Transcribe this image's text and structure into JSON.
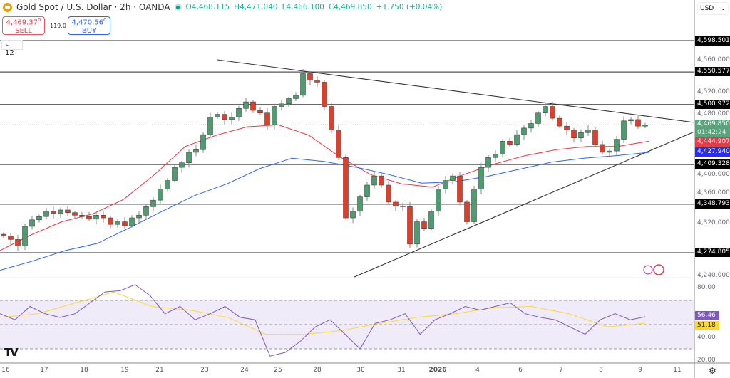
{
  "header": {
    "title": "Gold Spot / U.S. Dollar · 2h · OANDA",
    "open": "O4,468.115",
    "high": "H4,471.040",
    "low": "L4,466.100",
    "close": "C4,469.850",
    "change": "+1.750 (+0.04%)",
    "market_status": "open"
  },
  "trade": {
    "sell_price": "4,469.37",
    "sell_sup": "0",
    "sell_label": "SELL",
    "spread": "119.0",
    "buy_price": "4,470.56",
    "buy_sup": "0",
    "buy_label": "BUY"
  },
  "indicator_collapse": "12",
  "currency": "USD",
  "price_axis": {
    "ticks": [
      "4,560.000",
      "4,520.000",
      "4,480.000",
      "4,400.000",
      "4,360.000",
      "4,320.000",
      "4,240.000"
    ],
    "levels": [
      "4,598.501",
      "4,550.577",
      "4,500.972",
      "4,409.328",
      "4,348.793",
      "4,274.805"
    ],
    "last_price": "4,469.850",
    "countdown": "01:42:24",
    "ema_fast": "4,444.907",
    "ema_slow": "4,427.940"
  },
  "rsi_axis": {
    "ticks": [
      "80.00",
      "40.00",
      "20.00"
    ],
    "rsi_value": "56.46",
    "rsi_ma_value": "51.18"
  },
  "time_axis": [
    "16",
    "17",
    "18",
    "19",
    "21",
    "23",
    "24",
    "25",
    "28",
    "30",
    "31",
    "2026",
    "4",
    "6",
    "7",
    "8",
    "9",
    "11"
  ],
  "colors": {
    "up": "#4f9a6f",
    "down": "#d9412f",
    "ema_fast": "#f23645",
    "ema_slow": "#2962ff",
    "rsi": "#7e57c2",
    "rsi_ma": "#fdd835",
    "last": "#5ba37d"
  },
  "icons": [
    "tradingview-logo-icon",
    "gear-icon",
    "lightning-event-icon",
    "us-flag-event-icon",
    "chevron-down-icon"
  ],
  "chart_data": {
    "type": "candlestick",
    "closes": [
      4300,
      4295,
      4285,
      4315,
      4325,
      4330,
      4338,
      4335,
      4340,
      4336,
      4332,
      4330,
      4326,
      4332,
      4328,
      4318,
      4322,
      4316,
      4328,
      4332,
      4345,
      4355,
      4372,
      4385,
      4405,
      4412,
      4428,
      4432,
      4455,
      4482,
      4486,
      4478,
      4482,
      4495,
      4505,
      4492,
      4488,
      4470,
      4498,
      4502,
      4510,
      4515,
      4548,
      4538,
      4535,
      4498,
      4462,
      4420,
      4328,
      4338,
      4360,
      4378,
      4392,
      4378,
      4352,
      4346,
      4345,
      4288,
      4322,
      4312,
      4338,
      4372,
      4385,
      4392,
      4352,
      4322,
      4372,
      4405,
      4420,
      4425,
      4445,
      4440,
      4455,
      4465,
      4472,
      4488,
      4498,
      4480,
      4468,
      4462,
      4450,
      4458,
      4462,
      4440,
      4428,
      4430,
      4448,
      4476,
      4478,
      4468,
      4469.85
    ],
    "ema_fast": [
      4278,
      4302,
      4322,
      4334,
      4356,
      4394,
      4437,
      4454,
      4467,
      4470,
      4454,
      4421,
      4394,
      4380,
      4375,
      4394,
      4410,
      4423,
      4432,
      4437,
      4437,
      4444.9
    ],
    "ema_slow": [
      4248,
      4262,
      4278,
      4289,
      4313,
      4338,
      4362,
      4380,
      4403,
      4419,
      4414,
      4405,
      4394,
      4381,
      4383,
      4391,
      4402,
      4413,
      4419,
      4423,
      4427.9
    ],
    "rsi": [
      59,
      54,
      65,
      59,
      56,
      59,
      68,
      77,
      78,
      83,
      74,
      59,
      65,
      54,
      59,
      65,
      56,
      54,
      24,
      27,
      36,
      48,
      54,
      42,
      30,
      51,
      54,
      59,
      42,
      54,
      59,
      65,
      62,
      65,
      68,
      59,
      56,
      54,
      48,
      42,
      54,
      59,
      54,
      56.46
    ],
    "rsi_ma": [
      56,
      59,
      68,
      77,
      65,
      62,
      56,
      42,
      42,
      45,
      51,
      56,
      59,
      64,
      65,
      59,
      48,
      51.18
    ],
    "rsi_bands": [
      70,
      30
    ],
    "ylim": [
      4225,
      4620
    ]
  }
}
